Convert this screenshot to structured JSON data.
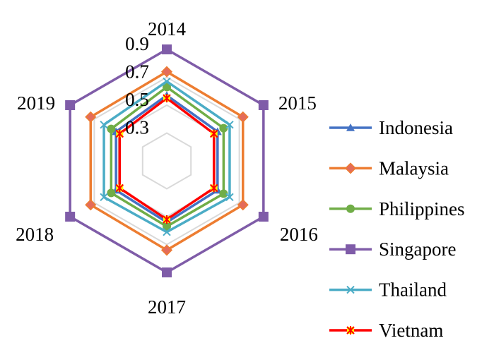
{
  "chart_data": {
    "type": "radar",
    "categories": [
      "2014",
      "2015",
      "2016",
      "2017",
      "2018",
      "2019"
    ],
    "rlim": [
      0.1,
      0.9
    ],
    "ticks": [
      0.3,
      0.5,
      0.7,
      0.9
    ],
    "tick_labels": [
      "0.3",
      "0.5",
      "0.7",
      "0.9"
    ],
    "grid": true,
    "legend_position": "right",
    "series": [
      {
        "name": "Indonesia",
        "color": "#4472C4",
        "marker": "triangle",
        "values": [
          0.57,
          0.52,
          0.52,
          0.54,
          0.52,
          0.52
        ]
      },
      {
        "name": "Malaysia",
        "color": "#ED7D31",
        "marker": "diamond",
        "values": [
          0.74,
          0.73,
          0.73,
          0.74,
          0.73,
          0.73
        ]
      },
      {
        "name": "Philippines",
        "color": "#70AD47",
        "marker": "circle",
        "values": [
          0.63,
          0.57,
          0.57,
          0.57,
          0.56,
          0.56
        ]
      },
      {
        "name": "Singapore",
        "color": "#7F5CA8",
        "marker": "square",
        "values": [
          0.9,
          0.9,
          0.9,
          0.9,
          0.9,
          0.9
        ]
      },
      {
        "name": "Thailand",
        "color": "#4BACC6",
        "marker": "x",
        "values": [
          0.67,
          0.62,
          0.62,
          0.61,
          0.62,
          0.62
        ]
      },
      {
        "name": "Vietnam",
        "color": "#FF0000",
        "marker": "star",
        "values": [
          0.55,
          0.49,
          0.49,
          0.52,
          0.49,
          0.49
        ]
      }
    ]
  }
}
